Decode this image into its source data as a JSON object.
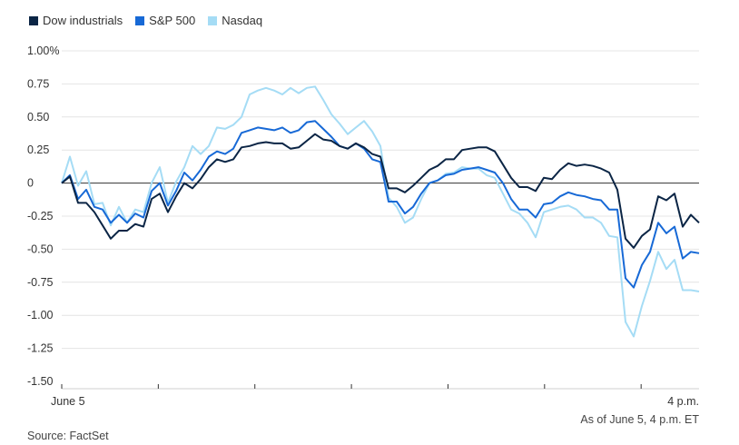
{
  "legend": [
    {
      "name": "Dow industrials",
      "color": "#0b2545"
    },
    {
      "name": "S&P 500",
      "color": "#1769d6"
    },
    {
      "name": "Nasdaq",
      "color": "#a5dcf5"
    }
  ],
  "note": "As of June 5, 4 p.m. ET",
  "source": "Source: FactSet",
  "chart_data": {
    "type": "line",
    "title": "",
    "xlabel": "",
    "ylabel": "",
    "ylim": [
      -1.5,
      1.0
    ],
    "yticks": [
      1.0,
      0.75,
      0.5,
      0.25,
      0,
      -0.25,
      -0.5,
      -0.75,
      -1.0,
      -1.25,
      -1.5
    ],
    "ytick_labels": [
      "1.00%",
      "0.75",
      "0.50",
      "0.25",
      "0",
      "-0.25",
      "-0.50",
      "-0.75",
      "-1.00",
      "-1.25",
      "-1.50"
    ],
    "xlim": [
      0,
      66
    ],
    "xtick_positions": [
      0,
      10,
      20,
      30,
      40,
      50,
      60
    ],
    "x_labels": [
      {
        "x": 0,
        "text": "June 5"
      },
      {
        "x": 66,
        "text": "4 p.m."
      }
    ],
    "grid": true,
    "legend_position": "top-left",
    "series": [
      {
        "name": "Dow industrials",
        "color": "#0b2545",
        "values": [
          0.0,
          0.05,
          -0.15,
          -0.15,
          -0.22,
          -0.32,
          -0.42,
          -0.36,
          -0.36,
          -0.31,
          -0.33,
          -0.12,
          -0.08,
          -0.22,
          -0.1,
          0.0,
          -0.04,
          0.03,
          0.12,
          0.18,
          0.16,
          0.18,
          0.27,
          0.28,
          0.3,
          0.31,
          0.3,
          0.3,
          0.26,
          0.27,
          0.32,
          0.37,
          0.33,
          0.32,
          0.28,
          0.26,
          0.3,
          0.27,
          0.22,
          0.2,
          -0.04,
          -0.04,
          -0.07,
          -0.02,
          0.04,
          0.1,
          0.13,
          0.18,
          0.18,
          0.25,
          0.26,
          0.27,
          0.27,
          0.24,
          0.14,
          0.04,
          -0.03,
          -0.03,
          -0.06,
          0.04,
          0.03,
          0.1,
          0.15,
          0.13,
          0.14,
          0.13,
          0.11,
          0.08,
          -0.05,
          -0.42,
          -0.49,
          -0.4,
          -0.35,
          -0.1,
          -0.13,
          -0.08,
          -0.33,
          -0.24,
          -0.3
        ]
      },
      {
        "name": "S&P 500",
        "color": "#1769d6",
        "values": [
          0.0,
          0.06,
          -0.12,
          -0.05,
          -0.18,
          -0.2,
          -0.3,
          -0.24,
          -0.3,
          -0.23,
          -0.26,
          -0.06,
          0.0,
          -0.17,
          -0.06,
          0.08,
          0.02,
          0.1,
          0.2,
          0.24,
          0.22,
          0.26,
          0.38,
          0.4,
          0.42,
          0.41,
          0.4,
          0.42,
          0.38,
          0.4,
          0.46,
          0.47,
          0.41,
          0.35,
          0.28,
          0.26,
          0.3,
          0.26,
          0.18,
          0.16,
          -0.14,
          -0.14,
          -0.23,
          -0.18,
          -0.08,
          0.0,
          0.02,
          0.06,
          0.07,
          0.1,
          0.11,
          0.12,
          0.1,
          0.08,
          0.0,
          -0.12,
          -0.2,
          -0.2,
          -0.26,
          -0.16,
          -0.15,
          -0.1,
          -0.07,
          -0.09,
          -0.1,
          -0.12,
          -0.13,
          -0.2,
          -0.2,
          -0.72,
          -0.79,
          -0.62,
          -0.52,
          -0.3,
          -0.38,
          -0.33,
          -0.57,
          -0.52,
          -0.53
        ]
      },
      {
        "name": "Nasdaq",
        "color": "#a5dcf5",
        "values": [
          0.0,
          0.2,
          -0.02,
          0.09,
          -0.16,
          -0.15,
          -0.32,
          -0.18,
          -0.3,
          -0.2,
          -0.22,
          0.0,
          0.12,
          -0.15,
          0.01,
          0.12,
          0.28,
          0.22,
          0.28,
          0.42,
          0.41,
          0.44,
          0.5,
          0.67,
          0.7,
          0.72,
          0.7,
          0.67,
          0.72,
          0.68,
          0.72,
          0.73,
          0.63,
          0.52,
          0.45,
          0.37,
          0.42,
          0.47,
          0.39,
          0.28,
          -0.11,
          -0.18,
          -0.3,
          -0.26,
          -0.12,
          0.0,
          0.02,
          0.07,
          0.08,
          0.12,
          0.11,
          0.11,
          0.06,
          0.04,
          -0.08,
          -0.2,
          -0.23,
          -0.3,
          -0.41,
          -0.22,
          -0.2,
          -0.18,
          -0.17,
          -0.2,
          -0.26,
          -0.26,
          -0.3,
          -0.4,
          -0.41,
          -1.05,
          -1.16,
          -0.93,
          -0.74,
          -0.52,
          -0.65,
          -0.58,
          -0.81,
          -0.81,
          -0.82
        ]
      }
    ]
  }
}
